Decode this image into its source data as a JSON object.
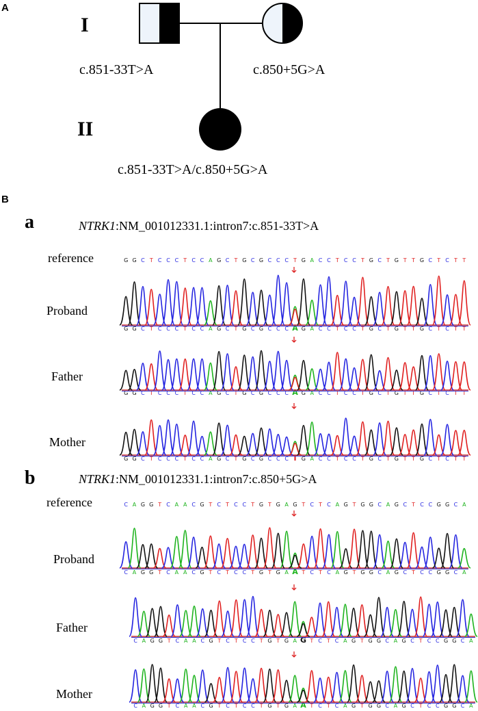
{
  "panel_a": {
    "label": "A",
    "generations": [
      "I",
      "II"
    ],
    "father_variant": "c.851-33T>A",
    "mother_variant": "c.850+5G>A",
    "proband_variant": "c.851-33T>A/c.850+5G>A"
  },
  "panel_b": {
    "label": "B",
    "sections": [
      {
        "label": "a",
        "gene": "NTRK1",
        "variant": ":NM_001012331.1:intron7:c.851-33T>A",
        "tracks": [
          {
            "name": "reference",
            "sequence": "GGCTCCCTCCAGCTGCGCCCTGACCTCCTGCTGTTGCTCTT"
          },
          {
            "name": "Proband",
            "sequence": "GGCTCCCTCCAGCTGCGCCCAGACCTCCTGCTGTTGCTCTT"
          },
          {
            "name": "Father",
            "sequence": "GGCTCCCTCCAGCTGCGCCCAGACCTCCTGCTGTTGCTCTT"
          },
          {
            "name": "Mother",
            "sequence": "GGCTCCCTCCAGCTGCGCCCTGACCTCCTGCTGTTGCTCTT"
          }
        ]
      },
      {
        "label": "b",
        "gene": "NTRK1",
        "variant": ":NM_001012331.1:intron7:c.850+5G>A",
        "tracks": [
          {
            "name": "reference",
            "sequence": "CAGGTCAACGTCTCCTGTGAGTCTCAGTGGCAGCTCCGGCA"
          },
          {
            "name": "Proband",
            "sequence": "CAGGTCAACGTCTCCTGTGAATCTCAGTGGCAGCTCCGGCA"
          },
          {
            "name": "Father",
            "sequence": "CAGGTCAACGTCTCCTGTGAGTCTCAGTGGCAGCTCCGGCA"
          },
          {
            "name": "Mother",
            "sequence": "CAGGTCAACGTCTCCTGTGAATCTCAGTGGCAGCTCCGGCA"
          }
        ]
      }
    ]
  }
}
